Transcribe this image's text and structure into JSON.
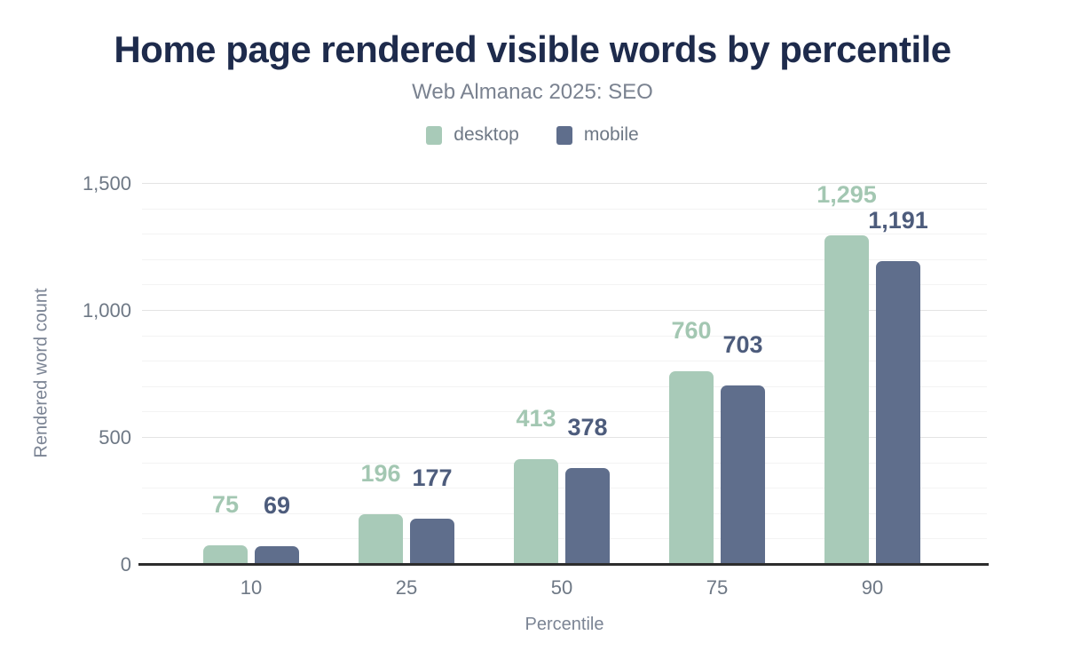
{
  "chart_data": {
    "type": "bar",
    "title": "Home page rendered visible words by percentile",
    "subtitle": "Web Almanac 2025: SEO",
    "categories": [
      "10",
      "25",
      "50",
      "75",
      "90"
    ],
    "series": [
      {
        "name": "desktop",
        "color": "#a8cab8",
        "label_color": "#a3c7b2",
        "values": [
          75,
          196,
          413,
          760,
          1295
        ],
        "value_labels": [
          "75",
          "196",
          "413",
          "760",
          "1,295"
        ]
      },
      {
        "name": "mobile",
        "color": "#5f6e8c",
        "label_color": "#4d5c7c",
        "values": [
          69,
          177,
          378,
          703,
          1191
        ],
        "value_labels": [
          "69",
          "177",
          "378",
          "703",
          "1,191"
        ]
      }
    ],
    "xlabel": "Percentile",
    "ylabel": "Rendered word count",
    "ylim": [
      0,
      1500
    ],
    "yticks": [
      {
        "value": 0,
        "label": "0"
      },
      {
        "value": 500,
        "label": "500"
      },
      {
        "value": 1000,
        "label": "1,000"
      },
      {
        "value": 1500,
        "label": "1,500"
      }
    ],
    "grid": {
      "major_every": 500,
      "minor_every": 100,
      "major_color": "#e4e4e4",
      "minor_color": "#f3f3f3"
    },
    "legend_position": "top",
    "axis_line_color": "#2d2d2d",
    "title_color": "#1e2b4c",
    "text_color": "#6e7885",
    "background_color": "#ffffff"
  }
}
